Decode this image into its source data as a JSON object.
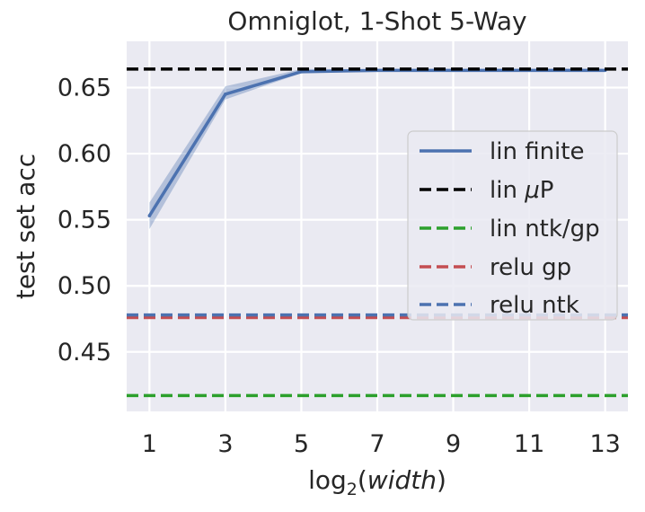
{
  "chart_data": {
    "type": "line",
    "title": "Omniglot, 1-Shot 5-Way",
    "xlabel": {
      "prefix": "log",
      "sub": "2",
      "open": "(",
      "var": "width",
      "close": ")"
    },
    "ylabel": "test set acc",
    "xlim": [
      0.4,
      13.6
    ],
    "ylim": [
      0.405,
      0.685
    ],
    "xticks": [
      1,
      3,
      5,
      7,
      9,
      11,
      13
    ],
    "yticks": [
      0.45,
      0.5,
      0.55,
      0.6,
      0.65
    ],
    "ytick_labels": [
      "0.45",
      "0.50",
      "0.55",
      "0.60",
      "0.65"
    ],
    "grid": true,
    "legend_position": "center-right",
    "series": [
      {
        "name": "lin finite",
        "style": "solid",
        "color": "#4c72b0",
        "x": [
          1,
          3,
          5,
          7,
          9,
          11,
          13
        ],
        "y": [
          0.553,
          0.645,
          0.662,
          0.663,
          0.663,
          0.663,
          0.663
        ],
        "band": {
          "lower": [
            0.543,
            0.641,
            0.661,
            0.662,
            0.662,
            0.662,
            0.662
          ],
          "upper": [
            0.563,
            0.651,
            0.664,
            0.664,
            0.664,
            0.664,
            0.664
          ]
        }
      },
      {
        "name": "lin μP",
        "label_prefix": "lin ",
        "label_math": "μ",
        "label_suffix": "P",
        "style": "dashed",
        "color": "#000000",
        "hline": 0.664
      },
      {
        "name": "lin ntk/gp",
        "style": "dashed",
        "color": "#2ca02c",
        "hline": 0.417
      },
      {
        "name": "relu gp",
        "style": "dashed",
        "color": "#c44e52",
        "hline": 0.476
      },
      {
        "name": "relu ntk",
        "style": "dashed",
        "color": "#4c72b0",
        "hline": 0.478
      }
    ]
  }
}
